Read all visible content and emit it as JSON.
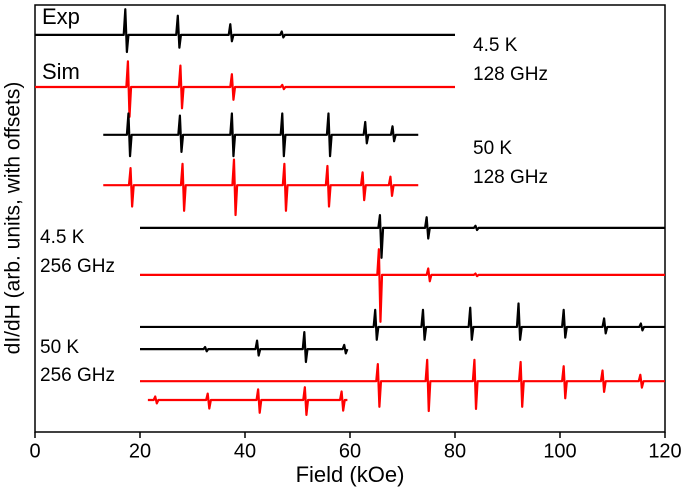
{
  "chart_data": {
    "type": "line",
    "xlabel": "Field (kOe)",
    "ylabel": "dI/dH (arb. units, with offsets)",
    "xlim": [
      0,
      120
    ],
    "xticks": [
      0,
      20,
      40,
      60,
      80,
      100,
      120
    ],
    "ylim": [
      0,
      100
    ],
    "annotations": [
      "Exp",
      "Sim",
      "4.5 K",
      "128 GHz",
      "50 K",
      "128 GHz",
      "4.5 K",
      "256 GHz",
      "50 K",
      "256 GHz"
    ],
    "series": [
      {
        "color": "#000000",
        "x": [
          0,
          16.9,
          17.2,
          17.5,
          17.8,
          26.9,
          27.2,
          27.5,
          27.8,
          36.9,
          37.2,
          37.5,
          37.8,
          46.7,
          47.0,
          47.3,
          47.6,
          80
        ],
        "values": [
          93,
          93,
          99,
          89,
          93,
          93,
          97.5,
          90,
          93,
          93,
          95.5,
          91.5,
          93,
          93,
          93.8,
          92.4,
          93,
          93
        ]
      },
      {
        "color": "#ff0000",
        "x": [
          0,
          17.4,
          17.7,
          18.0,
          18.3,
          27.4,
          27.7,
          28.0,
          28.3,
          37.2,
          37.5,
          37.8,
          38.1,
          46.8,
          47.1,
          47.4,
          47.7,
          80
        ],
        "values": [
          80.8,
          80.8,
          86.8,
          73.8,
          80.8,
          80.8,
          85.8,
          75.8,
          80.8,
          80.8,
          83.8,
          77.8,
          80.8,
          80.8,
          81.3,
          80.3,
          80.8,
          80.8
        ]
      },
      {
        "color": "#000000",
        "x": [
          13,
          17.5,
          17.8,
          18.1,
          18.4,
          27.3,
          27.6,
          27.9,
          28.2,
          37.2,
          37.5,
          37.8,
          38.1,
          46.8,
          47.1,
          47.4,
          47.7,
          55.6,
          55.9,
          56.2,
          56.5,
          62.6,
          62.9,
          63.2,
          63.5,
          67.8,
          68.1,
          68.4,
          68.7,
          73
        ],
        "values": [
          69.6,
          69.6,
          74.6,
          64.6,
          69.6,
          69.6,
          74.1,
          65.6,
          69.6,
          69.6,
          74.6,
          64.6,
          69.6,
          69.6,
          74.6,
          64.6,
          69.6,
          69.6,
          74.6,
          64.6,
          69.6,
          69.6,
          72.6,
          67.6,
          69.6,
          69.6,
          71.6,
          68.1,
          69.6,
          69.6
        ]
      },
      {
        "color": "#ff0000",
        "x": [
          13,
          17.9,
          18.2,
          18.5,
          18.8,
          27.8,
          28.1,
          28.4,
          28.7,
          37.6,
          37.9,
          38.2,
          38.5,
          47.2,
          47.5,
          47.8,
          48.1,
          55.4,
          55.7,
          56.0,
          56.3,
          62.1,
          62.4,
          62.7,
          63.0,
          67.4,
          67.7,
          68.0,
          68.3,
          73
        ],
        "values": [
          57.8,
          57.8,
          61.8,
          52.8,
          57.8,
          57.8,
          62.8,
          51.8,
          57.8,
          57.8,
          63.8,
          50.8,
          57.8,
          57.8,
          62.8,
          51.8,
          57.8,
          57.8,
          62.3,
          52.8,
          57.8,
          57.8,
          60.8,
          54.3,
          57.8,
          57.8,
          59.8,
          55.3,
          57.8,
          57.8
        ]
      },
      {
        "color": "#000000",
        "x": [
          20,
          65.4,
          65.7,
          66.0,
          66.3,
          74.3,
          74.6,
          74.9,
          75.2,
          83.6,
          83.9,
          84.2,
          84.5,
          120
        ],
        "values": [
          47.8,
          47.8,
          50.8,
          40.8,
          47.8,
          47.8,
          50.3,
          45.3,
          47.8,
          47.8,
          48.3,
          47.3,
          47.8,
          47.8
        ]
      },
      {
        "color": "#ff0000",
        "x": [
          20,
          65.2,
          65.5,
          65.8,
          66.1,
          74.6,
          74.9,
          75.2,
          75.5,
          83.6,
          83.9,
          84.2,
          84.5,
          120
        ],
        "values": [
          36.8,
          36.8,
          42.8,
          25.8,
          36.8,
          36.8,
          38.3,
          35.3,
          36.8,
          36.8,
          37.1,
          36.5,
          36.8,
          36.8
        ]
      },
      {
        "color": "#000000",
        "x": [
          20,
          64.5,
          64.8,
          65.1,
          65.4,
          73.6,
          73.9,
          74.2,
          74.5,
          82.6,
          82.9,
          83.2,
          83.5,
          91.8,
          92.1,
          92.4,
          92.7,
          100.4,
          100.7,
          101.0,
          101.3,
          108.1,
          108.4,
          108.7,
          109.0,
          115.1,
          115.4,
          115.7,
          116.0,
          120
        ],
        "values": [
          24.6,
          24.6,
          28.6,
          21.6,
          24.6,
          24.6,
          28.6,
          21.6,
          24.6,
          24.6,
          29.1,
          21.6,
          24.6,
          24.6,
          30.1,
          21.6,
          24.6,
          24.6,
          28.6,
          22.1,
          24.6,
          24.6,
          26.6,
          23.1,
          24.6,
          24.6,
          25.4,
          23.8,
          24.6,
          24.6
        ]
      },
      {
        "color": "#000000",
        "x": [
          20,
          32.1,
          32.4,
          32.7,
          33.0,
          42.0,
          42.3,
          42.6,
          42.9,
          51.0,
          51.3,
          51.6,
          51.9,
          58.6,
          58.9,
          59.2,
          59.5
        ],
        "values": [
          19.4,
          19.4,
          19.9,
          18.9,
          19.4,
          19.4,
          21.4,
          17.9,
          19.4,
          19.4,
          23.4,
          16.4,
          19.4,
          19.4,
          20.4,
          18.4,
          19.4
        ]
      },
      {
        "color": "#ff0000",
        "x": [
          20,
          65.0,
          65.3,
          65.6,
          65.9,
          74.4,
          74.7,
          75.0,
          75.3,
          83.4,
          83.7,
          84.0,
          84.3,
          92.2,
          92.5,
          92.8,
          93.1,
          100.4,
          100.7,
          101.0,
          101.3,
          107.8,
          108.1,
          108.4,
          108.7,
          115.0,
          115.3,
          115.6,
          115.9,
          120
        ],
        "values": [
          11.9,
          11.9,
          15.9,
          5.9,
          11.9,
          11.9,
          16.9,
          4.9,
          11.9,
          11.9,
          16.9,
          5.4,
          11.9,
          11.9,
          16.4,
          5.9,
          11.9,
          11.9,
          15.4,
          7.9,
          11.9,
          11.9,
          14.4,
          9.4,
          11.9,
          11.9,
          13.4,
          10.4,
          11.9,
          11.9
        ]
      },
      {
        "color": "#ff0000",
        "x": [
          21.5,
          22.6,
          22.9,
          23.2,
          23.5,
          32.6,
          32.9,
          33.2,
          33.5,
          42.2,
          42.5,
          42.8,
          43.1,
          51.1,
          51.4,
          51.7,
          52.0,
          58.1,
          58.4,
          58.7,
          59.0,
          59.5
        ],
        "values": [
          7.5,
          7.5,
          8.3,
          6.7,
          7.5,
          7.5,
          9.0,
          5.5,
          7.5,
          7.5,
          10.0,
          4.5,
          7.5,
          7.5,
          10.5,
          4.0,
          7.5,
          7.5,
          9.5,
          5.0,
          7.5,
          7.5
        ]
      }
    ]
  }
}
